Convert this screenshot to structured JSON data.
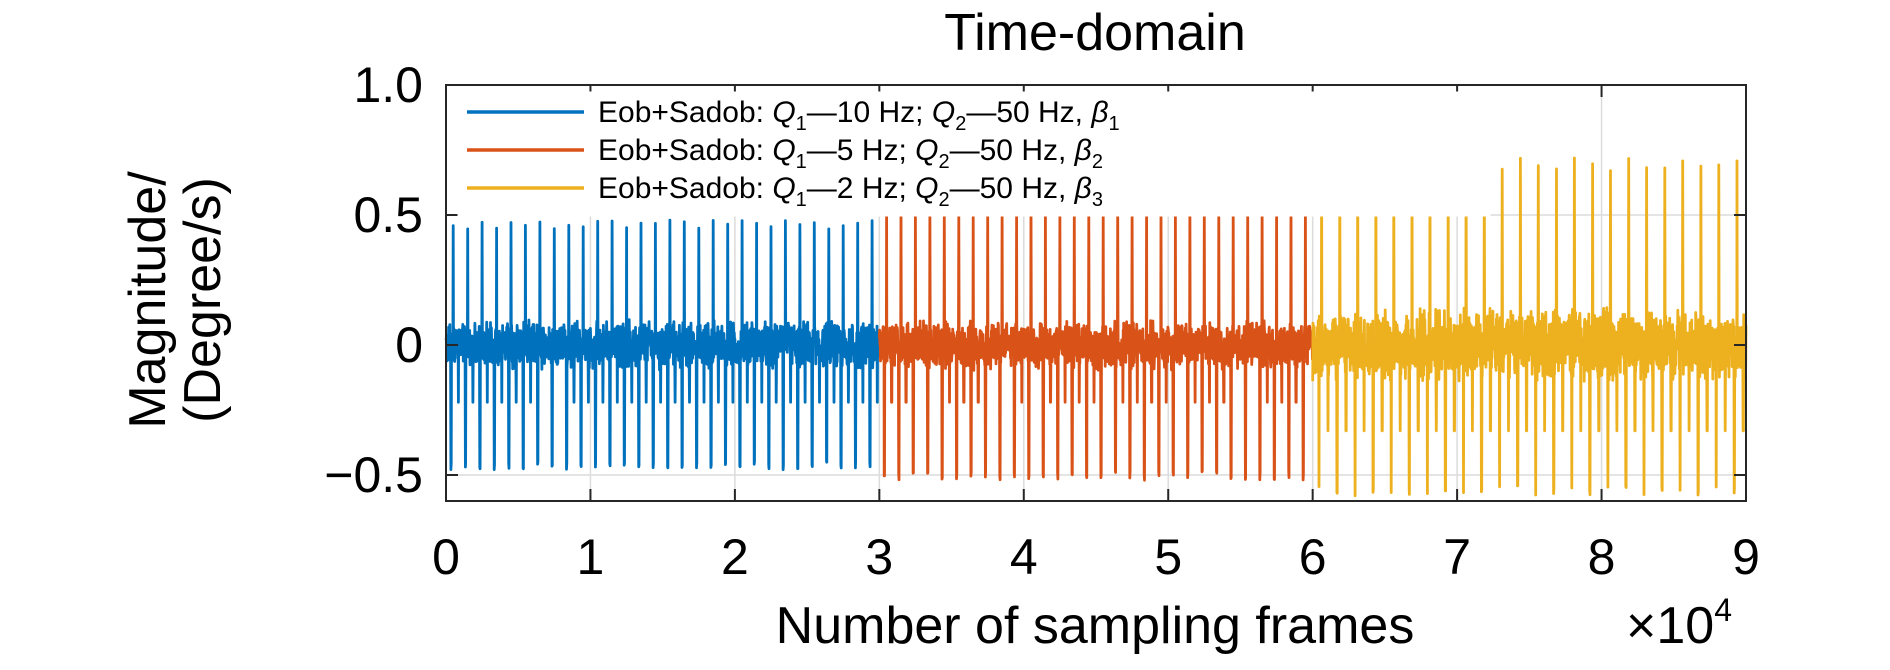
{
  "chart_data": {
    "type": "line",
    "title": "Time-domain",
    "xlabel": "Number of sampling frames",
    "ylabel_line1": "Magnitude/",
    "ylabel_line2": "(Degree/s)",
    "x_exponent_label": "×10",
    "x_exponent_power": "4",
    "xlim": [
      0,
      9
    ],
    "ylim": [
      -0.6,
      1.0
    ],
    "xticks": [
      "0",
      "1",
      "2",
      "3",
      "4",
      "5",
      "6",
      "7",
      "8",
      "9"
    ],
    "yticks": [
      {
        "value": 1.0,
        "label": "1.0"
      },
      {
        "value": 0.5,
        "label": "0.5"
      },
      {
        "value": 0,
        "label": "0"
      },
      {
        "value": -0.5,
        "label": "−0.5"
      }
    ],
    "grid": true,
    "legend_position": "top-left",
    "series": [
      {
        "name": "Eob+Sadob: Q1—10 Hz; Q2—50 Hz, β1",
        "legend": {
          "prefix": "Eob+Sadob: ",
          "q1": "Q",
          "q1sub": "1",
          "mid1": "—10 Hz; ",
          "q2": "Q",
          "q2sub": "2",
          "mid2": "—50 Hz, ",
          "beta": "β",
          "betasub": "1"
        },
        "color": "#0072BD",
        "x_range": [
          0,
          3
        ],
        "peak_count": 30,
        "peak_max": 0.48,
        "peak_min": -0.48,
        "noise_band": [
          -0.1,
          0.1
        ]
      },
      {
        "name": "Eob+Sadob: Q1—5 Hz; Q2—50 Hz, β2",
        "legend": {
          "prefix": "Eob+Sadob: ",
          "q1": "Q",
          "q1sub": "1",
          "mid1": "—5 Hz; ",
          "q2": "Q",
          "q2sub": "2",
          "mid2": "—50 Hz, ",
          "beta": "β",
          "betasub": "2"
        },
        "color": "#D95319",
        "x_range": [
          3,
          6
        ],
        "peak_count": 30,
        "peak_max": 0.53,
        "peak_min": -0.52,
        "noise_band": [
          -0.1,
          0.1
        ]
      },
      {
        "name": "Eob+Sadob: Q1—2 Hz; Q2—50 Hz, β3",
        "legend": {
          "prefix": "Eob+Sadob: ",
          "q1": "Q",
          "q1sub": "1",
          "mid1": "—2 Hz; ",
          "q2": "Q",
          "q2sub": "2",
          "mid2": "—50 Hz, ",
          "beta": "β",
          "betasub": "3"
        },
        "color": "#EDB120",
        "x_range": [
          6,
          9
        ],
        "peak_count": 24,
        "peak_max": 0.72,
        "peak_min": -0.58,
        "noise_band": [
          -0.15,
          0.15
        ]
      }
    ]
  }
}
